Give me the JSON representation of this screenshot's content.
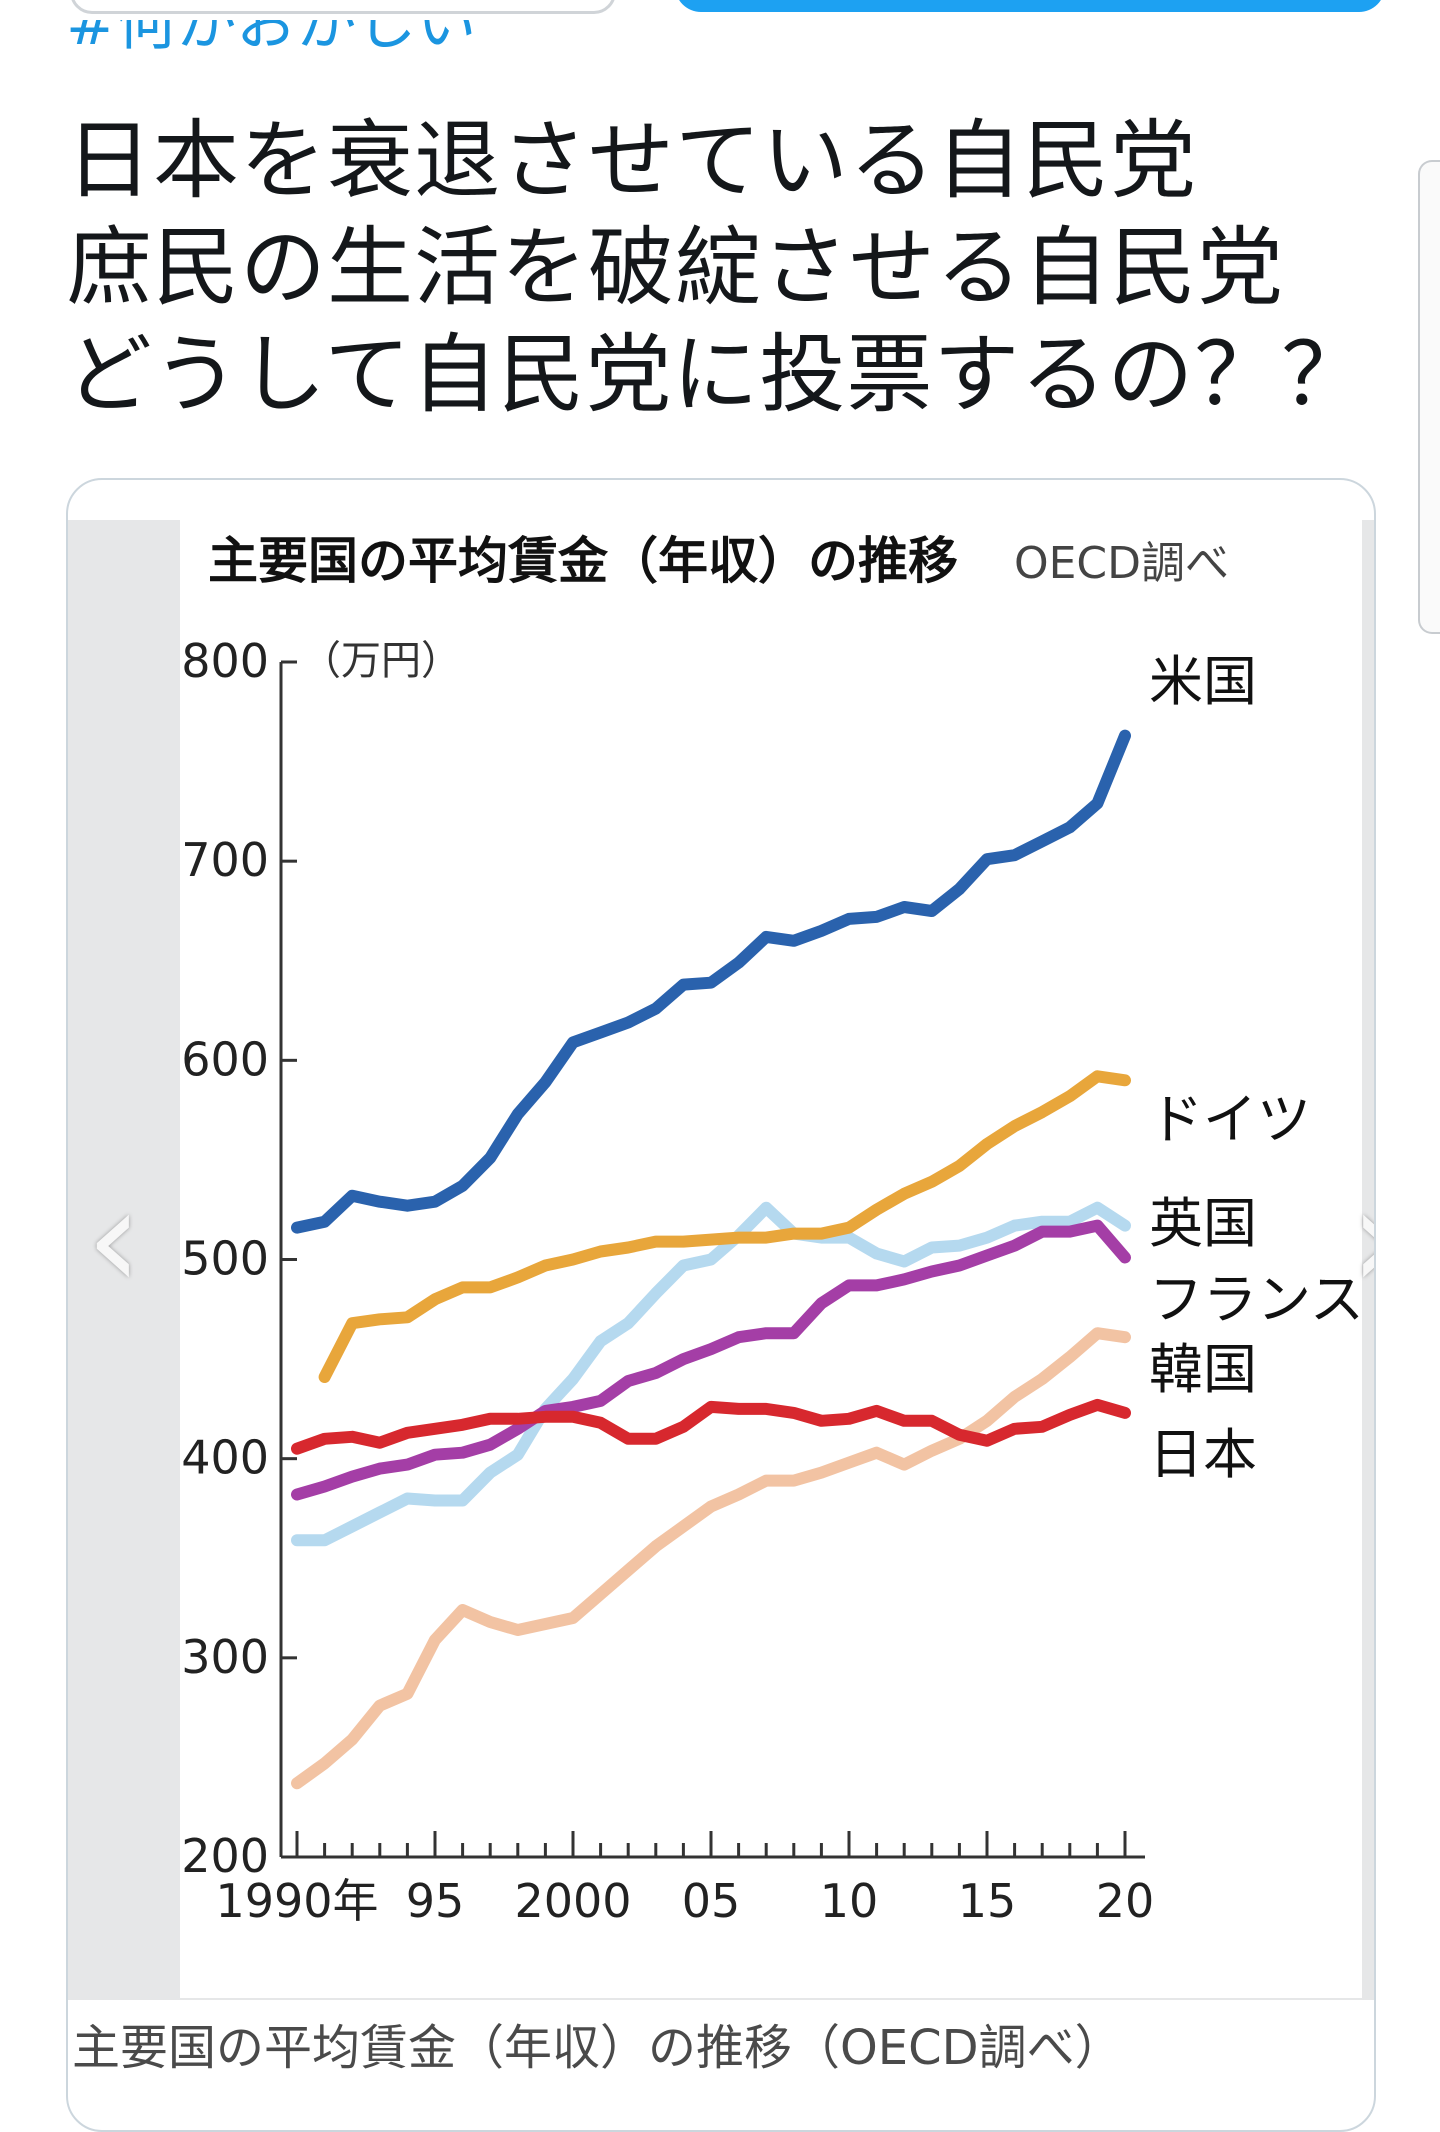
{
  "tweet": {
    "hashtag": "#何かおかしい",
    "lines": [
      "日本を衰退させている自民党",
      "庶民の生活を破綻させる自民党",
      "どうして自民党に投票するの？？"
    ]
  },
  "media": {
    "caption": "主要国の平均賃金（年収）の推移（OECD調べ）",
    "prev_arrow": "‹",
    "next_arrow": "›"
  },
  "chart_data": {
    "type": "line",
    "title": "主要国の平均賃金（年収）の推移",
    "source": "OECD調べ",
    "ylabel": "（万円）",
    "ylim": [
      200,
      800
    ],
    "yticks": [
      200,
      300,
      400,
      500,
      600,
      700,
      800
    ],
    "xlim": [
      1990,
      2020
    ],
    "xtick_labels": [
      {
        "year": 1990,
        "label": "1990年"
      },
      {
        "year": 1995,
        "label": "95"
      },
      {
        "year": 2000,
        "label": "2000"
      },
      {
        "year": 2005,
        "label": "05"
      },
      {
        "year": 2010,
        "label": "10"
      },
      {
        "year": 2015,
        "label": "15"
      },
      {
        "year": 2020,
        "label": "20"
      }
    ],
    "grid": false,
    "legend": "inline-right",
    "series": [
      {
        "name": "米国",
        "color": "#2a62ad",
        "x": [
          1990,
          1991,
          1992,
          1993,
          1994,
          1995,
          1996,
          1997,
          1998,
          1999,
          2000,
          2001,
          2002,
          2003,
          2004,
          2005,
          2006,
          2007,
          2008,
          2009,
          2010,
          2011,
          2012,
          2013,
          2014,
          2015,
          2016,
          2017,
          2018,
          2019,
          2020
        ],
        "y": [
          516,
          519,
          532,
          529,
          527,
          529,
          537,
          551,
          573,
          589,
          609,
          614,
          619,
          626,
          638,
          639,
          649,
          662,
          660,
          665,
          671,
          672,
          677,
          675,
          686,
          701,
          703,
          710,
          717,
          729,
          763
        ]
      },
      {
        "name": "ドイツ",
        "color": "#e8a63b",
        "x": [
          1991,
          1992,
          1993,
          1994,
          1995,
          1996,
          1997,
          1998,
          1999,
          2000,
          2001,
          2002,
          2003,
          2004,
          2005,
          2006,
          2007,
          2008,
          2009,
          2010,
          2011,
          2012,
          2013,
          2014,
          2015,
          2016,
          2017,
          2018,
          2019,
          2020
        ],
        "y": [
          441,
          468,
          470,
          471,
          480,
          486,
          486,
          491,
          497,
          500,
          504,
          506,
          509,
          509,
          510,
          511,
          511,
          513,
          513,
          516,
          525,
          533,
          539,
          547,
          558,
          567,
          574,
          582,
          592,
          590
        ]
      },
      {
        "name": "英国",
        "color": "#b5d9ef",
        "x": [
          1990,
          1991,
          1992,
          1993,
          1994,
          1995,
          1996,
          1997,
          1998,
          1999,
          2000,
          2001,
          2002,
          2003,
          2004,
          2005,
          2006,
          2007,
          2008,
          2009,
          2010,
          2011,
          2012,
          2013,
          2014,
          2015,
          2016,
          2017,
          2018,
          2019,
          2020
        ],
        "y": [
          359,
          359,
          366,
          373,
          380,
          379,
          379,
          393,
          402,
          425,
          440,
          459,
          468,
          483,
          497,
          500,
          512,
          526,
          513,
          511,
          511,
          503,
          499,
          506,
          507,
          511,
          517,
          519,
          519,
          526,
          517
        ]
      },
      {
        "name": "フランス",
        "color": "#a43ea6",
        "x": [
          1990,
          1991,
          1992,
          1993,
          1994,
          1995,
          1996,
          1997,
          1998,
          1999,
          2000,
          2001,
          2002,
          2003,
          2004,
          2005,
          2006,
          2007,
          2008,
          2009,
          2010,
          2011,
          2012,
          2013,
          2014,
          2015,
          2016,
          2017,
          2018,
          2019,
          2020
        ],
        "y": [
          382,
          386,
          391,
          395,
          397,
          402,
          403,
          407,
          415,
          424,
          426,
          429,
          439,
          443,
          450,
          455,
          461,
          463,
          463,
          478,
          487,
          487,
          490,
          494,
          497,
          502,
          507,
          514,
          514,
          517,
          501
        ]
      },
      {
        "name": "韓国",
        "color": "#f2c3a3",
        "x": [
          1990,
          1991,
          1992,
          1993,
          1994,
          1995,
          1996,
          1997,
          1998,
          1999,
          2000,
          2001,
          2002,
          2003,
          2004,
          2005,
          2006,
          2007,
          2008,
          2009,
          2010,
          2011,
          2012,
          2013,
          2014,
          2015,
          2016,
          2017,
          2018,
          2019,
          2020
        ],
        "y": [
          237,
          247,
          259,
          276,
          282,
          309,
          324,
          318,
          314,
          317,
          320,
          332,
          344,
          356,
          366,
          376,
          382,
          389,
          389,
          393,
          398,
          403,
          397,
          404,
          410,
          419,
          431,
          440,
          451,
          463,
          461
        ]
      },
      {
        "name": "日本",
        "color": "#d7282e",
        "x": [
          1990,
          1991,
          1992,
          1993,
          1994,
          1995,
          1996,
          1997,
          1998,
          1999,
          2000,
          2001,
          2002,
          2003,
          2004,
          2005,
          2006,
          2007,
          2008,
          2009,
          2010,
          2011,
          2012,
          2013,
          2014,
          2015,
          2016,
          2017,
          2018,
          2019,
          2020
        ],
        "y": [
          405,
          410,
          411,
          408,
          413,
          415,
          417,
          420,
          420,
          421,
          421,
          418,
          410,
          410,
          416,
          426,
          425,
          425,
          423,
          419,
          420,
          424,
          419,
          419,
          412,
          409,
          415,
          416,
          422,
          427,
          423
        ]
      }
    ]
  }
}
